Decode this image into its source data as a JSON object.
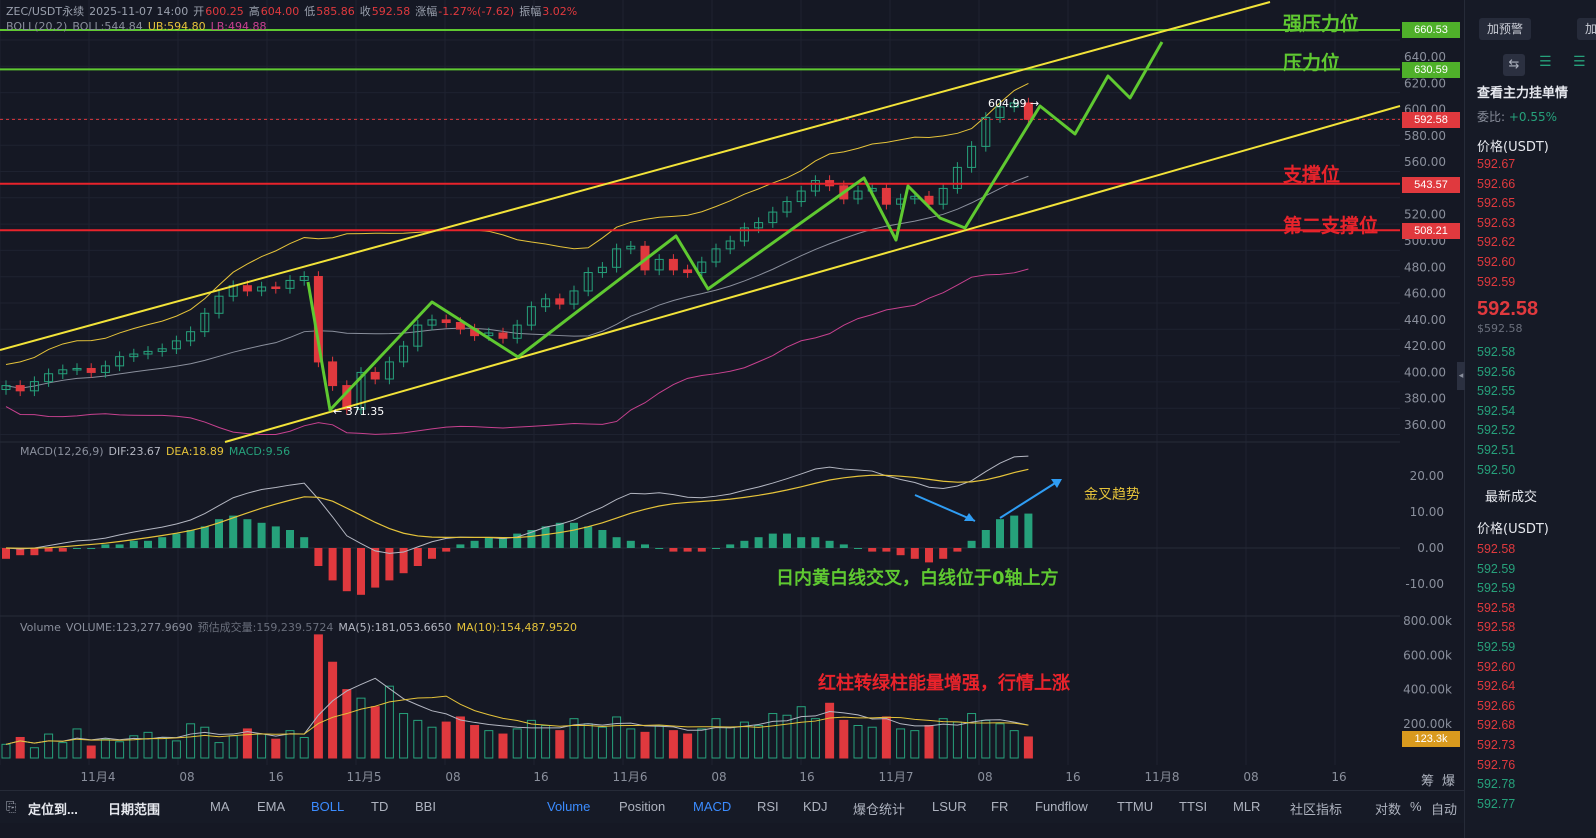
{
  "header": {
    "symbol": "ZEC/USDT永续",
    "time": "2025-11-07 14:00",
    "open_label": "开",
    "open": "600.25",
    "high_label": "高",
    "high": "604.00",
    "low_label": "低",
    "low": "585.86",
    "close_label": "收",
    "close": "592.58",
    "change_label": "涨幅",
    "change": "-1.27%(-7.62)",
    "amp_label": "振幅",
    "amp": "3.02%",
    "boll_label": "BOLL(20,2)",
    "boll_mid": "BOLL:544.84",
    "boll_ub": "UB:594.80",
    "boll_lb": "LB:494.88"
  },
  "macd_header": {
    "label": "MACD(12,26,9)",
    "dif": "DIF:23.67",
    "dea": "DEA:18.89",
    "macd": "MACD:9.56"
  },
  "vol_header": {
    "label": "Volume",
    "volume": "VOLUME:123,277.9690",
    "forecast": "预估成交量:159,239.5724",
    "ma5": "MA(5):181,053.6650",
    "ma10": "MA(10):154,487.9520"
  },
  "annotations": {
    "strong_resistance": "强压力位",
    "resistance": "压力位",
    "support": "支撑位",
    "second_support": "第二支撑位",
    "golden_cross": "金叉趋势",
    "macd_note": "日内黄白线交叉，白线位于0轴上方",
    "vol_note": "红柱转绿柱能量增强，行情上涨",
    "high_mark": "604.99",
    "low_mark": "371.35"
  },
  "price_tags": {
    "strong_resistance": "660.53",
    "resistance": "630.59",
    "last": "592.58",
    "support": "543.57",
    "second_support": "508.21",
    "volume_last": "123.3k"
  },
  "colors": {
    "up": "#26a17b",
    "down": "#e0393e",
    "level_green": "#5fc931",
    "level_red": "#e8232b",
    "channel": "#f2e339",
    "zigzag": "#5fc931",
    "boll_mid": "#8a8f9c",
    "boll_ub": "#e5c33a",
    "boll_lb": "#c7418f",
    "dif": "#b4b7c2",
    "dea": "#e5c33a"
  },
  "chart_data": {
    "type": "candlestick",
    "price_axis": {
      "ticks": [
        "640.00",
        "620.00",
        "600.00",
        "580.00",
        "560.00",
        "540.00",
        "520.00",
        "500.00",
        "480.00",
        "460.00",
        "440.00",
        "420.00",
        "400.00",
        "380.00",
        "360.00"
      ]
    },
    "macd_axis": {
      "ticks": [
        "20.00",
        "10.00",
        "0.00",
        "-10.00"
      ]
    },
    "volume_axis": {
      "ticks": [
        "800.00k",
        "600.00k",
        "400.00k",
        "200.00k"
      ]
    },
    "x_ticks": [
      "11月4",
      "08",
      "16",
      "11月5",
      "08",
      "16",
      "11月6",
      "08",
      "16",
      "11月7",
      "08",
      "16",
      "11月8",
      "08",
      "16"
    ],
    "levels": [
      {
        "name": "强压力位",
        "value": 660.53
      },
      {
        "name": "压力位",
        "value": 630.59
      },
      {
        "name": "支撑位",
        "value": 543.57
      },
      {
        "name": "第二支撑位",
        "value": 508.21
      }
    ],
    "closes": [
      390,
      386,
      393,
      399,
      402,
      403,
      400,
      405,
      412,
      414,
      416,
      418,
      424,
      431,
      445,
      458,
      466,
      462,
      465,
      464,
      470,
      473,
      408,
      390,
      372,
      400,
      395,
      408,
      420,
      436,
      440,
      438,
      433,
      428,
      430,
      426,
      436,
      450,
      456,
      452,
      462,
      476,
      480,
      494,
      496,
      478,
      486,
      478,
      476,
      484,
      494,
      500,
      510,
      514,
      522,
      530,
      538,
      546,
      542,
      532,
      538,
      540,
      528,
      532,
      534,
      528,
      540,
      556,
      572,
      594,
      602,
      605,
      592.58
    ],
    "macd_hist": [
      -3,
      -2,
      -2,
      -1,
      -1,
      0,
      0,
      1,
      1,
      2,
      2,
      3,
      4,
      5,
      6,
      8,
      9,
      8,
      7,
      6,
      5,
      3,
      -5,
      -9,
      -12,
      -13,
      -11,
      -9,
      -7,
      -5,
      -3,
      -1,
      1,
      2,
      3,
      3,
      4,
      5,
      6,
      7,
      7,
      6,
      5,
      3,
      2,
      1,
      0,
      -1,
      -1,
      -1,
      0,
      1,
      2,
      3,
      4,
      4,
      3,
      3,
      2,
      1,
      0,
      -1,
      -1,
      -2,
      -3,
      -4,
      -3,
      -1,
      2,
      5,
      8,
      9,
      9.56
    ],
    "volume": [
      80,
      120,
      60,
      140,
      90,
      170,
      70,
      110,
      95,
      130,
      150,
      120,
      100,
      200,
      180,
      90,
      130,
      170,
      140,
      110,
      160,
      120,
      720,
      560,
      400,
      350,
      300,
      420,
      260,
      220,
      180,
      210,
      240,
      190,
      160,
      140,
      170,
      220,
      190,
      160,
      230,
      200,
      180,
      240,
      170,
      150,
      190,
      160,
      140,
      170,
      230,
      180,
      210,
      190,
      260,
      250,
      300,
      230,
      320,
      220,
      190,
      180,
      240,
      170,
      160,
      190,
      230,
      210,
      260,
      220,
      200,
      160,
      123
    ]
  },
  "bottom_bar": {
    "locate": "定位到...",
    "date_range": "日期范围",
    "main_indicators": [
      "MA",
      "EMA",
      "BOLL",
      "TD",
      "BBI"
    ],
    "sub_indicators": [
      "Volume",
      "Position",
      "MACD",
      "RSI",
      "KDJ",
      "爆仓统计",
      "LSUR",
      "FR",
      "Fundflow",
      "TTMU",
      "TTSI",
      "MLR"
    ],
    "community": "社区指标",
    "log": "对数",
    "percent": "%",
    "auto": "自动",
    "corner1": "筹",
    "corner2": "爆"
  },
  "right_panel": {
    "alert_button": "加预警",
    "add_button": "加",
    "view_orders": "查看主力挂单情",
    "ratio_label": "委比:",
    "ratio_value": "+0.55%",
    "price_header": "价格(USDT)",
    "asks": [
      "592.67",
      "592.66",
      "592.65",
      "592.63",
      "592.62",
      "592.60",
      "592.59"
    ],
    "last_price": "592.58",
    "last_price_sub": "$592.58",
    "bids": [
      "592.58",
      "592.56",
      "592.55",
      "592.54",
      "592.52",
      "592.51",
      "592.50"
    ],
    "trades_title": "最新成交",
    "trades_header": "价格(USDT)",
    "trades": [
      {
        "p": "592.58",
        "s": "down"
      },
      {
        "p": "592.59",
        "s": "up"
      },
      {
        "p": "592.59",
        "s": "up"
      },
      {
        "p": "592.58",
        "s": "down"
      },
      {
        "p": "592.58",
        "s": "down"
      },
      {
        "p": "592.59",
        "s": "up"
      },
      {
        "p": "592.60",
        "s": "down"
      },
      {
        "p": "592.64",
        "s": "down"
      },
      {
        "p": "592.66",
        "s": "down"
      },
      {
        "p": "592.68",
        "s": "down"
      },
      {
        "p": "592.73",
        "s": "down"
      },
      {
        "p": "592.76",
        "s": "down"
      },
      {
        "p": "592.78",
        "s": "up"
      },
      {
        "p": "592.77",
        "s": "up"
      }
    ]
  }
}
